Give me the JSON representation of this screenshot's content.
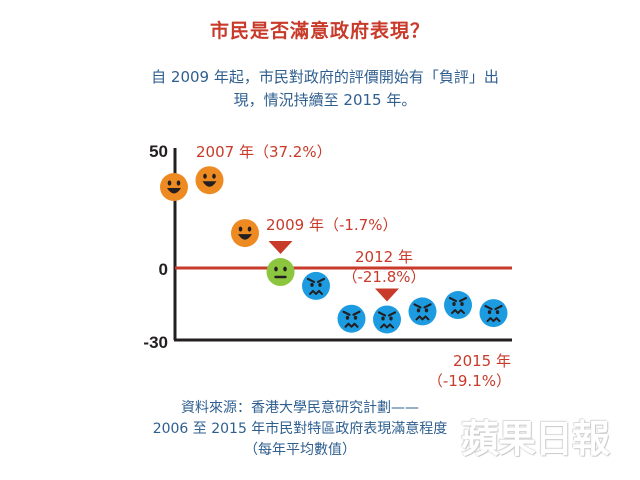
{
  "title": "市民是否滿意政府表現？",
  "subtitle_line1": "自 2009 年起，市民對政府的評價開始有「負評」出",
  "subtitle_line2": "現，情況持續至 2015 年。",
  "source_line1": "資料來源：香港大學民意研究計劃——",
  "source_line2": "2006 至 2015 年市民對特區政府表現滿意程度",
  "source_line3": "（每年平均數值）",
  "brand": "蘋果日報",
  "colors": {
    "positive": "#ee8a22",
    "neutral": "#8cc63f",
    "negative": "#1d9be0",
    "accent": "#c83a2a",
    "axis": "#231f20"
  },
  "chart_data": {
    "type": "scatter",
    "x": [
      2006,
      2007,
      2008,
      2009,
      2010,
      2011,
      2012,
      2013,
      2014,
      2015
    ],
    "values": [
      34.3,
      37.2,
      14.8,
      -1.7,
      -7.6,
      -21.5,
      -21.8,
      -18.4,
      -15.7,
      -19.1
    ],
    "ylim": [
      -30,
      50
    ],
    "yticks": [
      "50",
      "0",
      "-30"
    ],
    "annotations": [
      {
        "year": 2007,
        "line1": "2007 年（37.2%）",
        "line2": ""
      },
      {
        "year": 2009,
        "line1": "2009 年（-1.7%）",
        "line2": ""
      },
      {
        "year": 2012,
        "line1": "2012 年",
        "line2": "（-21.8%）"
      },
      {
        "year": 2015,
        "line1": "2015 年",
        "line2": "（-19.1%）"
      }
    ]
  }
}
